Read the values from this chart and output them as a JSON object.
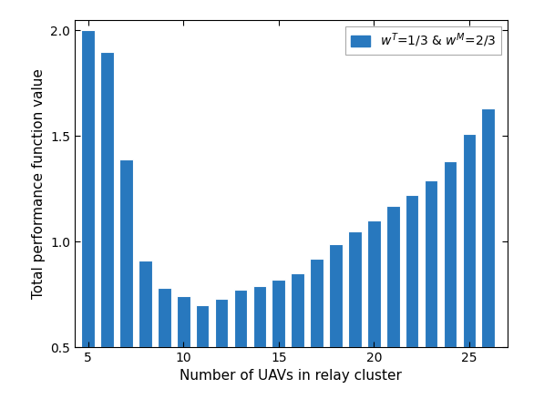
{
  "x": [
    5,
    6,
    7,
    8,
    9,
    10,
    11,
    12,
    13,
    14,
    15,
    16,
    17,
    18,
    19,
    20,
    21,
    22,
    23,
    24,
    25,
    26
  ],
  "values": [
    2.0,
    1.9,
    1.39,
    0.91,
    0.78,
    0.74,
    0.7,
    0.73,
    0.77,
    0.79,
    0.82,
    0.85,
    0.92,
    0.99,
    1.05,
    1.1,
    1.17,
    1.22,
    1.29,
    1.38,
    1.51,
    1.63
  ],
  "bar_color": "#2878be",
  "bar_edge_color": "#ffffff",
  "xlabel": "Number of UAVs in relay cluster",
  "ylabel": "Total performance function value",
  "ylim": [
    0.5,
    2.05
  ],
  "xlim": [
    4.3,
    27.0
  ],
  "yticks": [
    0.5,
    1.0,
    1.5,
    2.0
  ],
  "xticks": [
    5,
    10,
    15,
    20,
    25
  ],
  "legend_label": "$w^T$=1/3 & $w^M$=2/3",
  "axis_fontsize": 11,
  "tick_fontsize": 10,
  "legend_fontsize": 10,
  "bar_width": 0.7
}
